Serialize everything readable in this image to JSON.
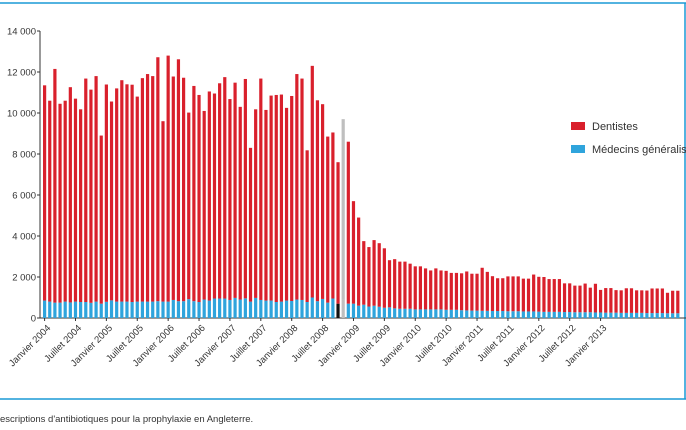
{
  "colors": {
    "dentistes": "#d9202c",
    "medecins": "#2fa4dc",
    "frame": "#1a9ad6",
    "marker_gray": "#bfbfbf",
    "marker_black": "#111111"
  },
  "caption": "escriptions d'antibiotiques pour la prophylaxie en Angleterre.",
  "chart_data": {
    "type": "bar",
    "stacked": true,
    "title": "",
    "xlabel": "",
    "ylabel": "",
    "ylim": [
      0,
      14000
    ],
    "yticks": [
      0,
      2000,
      4000,
      6000,
      8000,
      10000,
      12000,
      14000
    ],
    "ytick_labels": [
      "0",
      "2 000",
      "4 000",
      "6 000",
      "8 000",
      "10 000",
      "12 000",
      "14 000"
    ],
    "xtick_labels": [
      "Janvier 2004",
      "Juillet 2004",
      "Janvier 2005",
      "Juillet 2005",
      "Janvier 2006",
      "Juillet 2006",
      "Janvier 2007",
      "Juillet 2007",
      "Janvier 2008",
      "Juillet 2008",
      "Janvier 2009",
      "Juillet 2009",
      "Janvier 2010",
      "Juillet 2010",
      "Janvier 2011",
      "Juillet 2011",
      "Janvier 2012",
      "Juillet 2012",
      "Janvier 2013"
    ],
    "xtick_start_index": 0,
    "xtick_step": 6,
    "legend_position": "right",
    "grid": false,
    "marker_bars": {
      "gray_index": 58,
      "black_index": 57
    },
    "series": [
      {
        "name": "Dentistes",
        "values": [
          10500,
          9800,
          11400,
          9700,
          9800,
          10500,
          9900,
          9400,
          10900,
          10400,
          11000,
          8200,
          10600,
          9700,
          10400,
          10800,
          10600,
          10600,
          10000,
          10900,
          11100,
          11000,
          11900,
          8800,
          12000,
          10900,
          11800,
          10900,
          9100,
          10500,
          10100,
          9200,
          10200,
          10000,
          10500,
          10800,
          9800,
          10500,
          9400,
          10700,
          7500,
          9200,
          10800,
          9300,
          10000,
          10100,
          10100,
          9400,
          10000,
          11000,
          10800,
          7400,
          11300,
          9800,
          9500,
          8100,
          8100,
          6900,
          8800,
          7900,
          5000,
          4300,
          3100,
          2900,
          3200,
          3100,
          2900,
          2300,
          2400,
          2300,
          2300,
          2200,
          2100,
          2100,
          2000,
          1900,
          2000,
          1900,
          1900,
          1800,
          1800,
          1800,
          1900,
          1800,
          1800,
          2100,
          1900,
          1700,
          1600,
          1600,
          1700,
          1700,
          1700,
          1600,
          1600,
          1800,
          1700,
          1700,
          1600,
          1600,
          1600,
          1400,
          1400,
          1300,
          1300,
          1400,
          1200,
          1400,
          1100,
          1200,
          1200,
          1100,
          1100,
          1200,
          1200,
          1100,
          1100,
          1100,
          1200,
          1200,
          1200,
          1000,
          1100,
          1100
        ]
      },
      {
        "name": "Médecins généralistes",
        "values": [
          850,
          800,
          750,
          750,
          800,
          760,
          800,
          780,
          780,
          740,
          800,
          700,
          790,
          860,
          800,
          800,
          800,
          780,
          800,
          800,
          800,
          800,
          820,
          800,
          800,
          880,
          820,
          820,
          920,
          820,
          780,
          900,
          850,
          950,
          950,
          950,
          880,
          980,
          900,
          960,
          800,
          980,
          880,
          850,
          850,
          780,
          800,
          850,
          830,
          900,
          880,
          780,
          1000,
          820,
          930,
          750,
          950,
          700,
          900,
          700,
          700,
          600,
          650,
          560,
          600,
          550,
          500,
          520,
          470,
          450,
          450,
          450,
          420,
          420,
          420,
          420,
          420,
          420,
          400,
          400,
          400,
          380,
          370,
          360,
          360,
          350,
          350,
          340,
          340,
          340,
          330,
          330,
          330,
          320,
          320,
          320,
          310,
          300,
          300,
          300,
          300,
          290,
          290,
          280,
          280,
          280,
          280,
          270,
          270,
          260,
          260,
          260,
          250,
          250,
          250,
          250,
          250,
          240,
          240,
          240,
          240,
          230,
          230,
          230
        ]
      }
    ]
  }
}
